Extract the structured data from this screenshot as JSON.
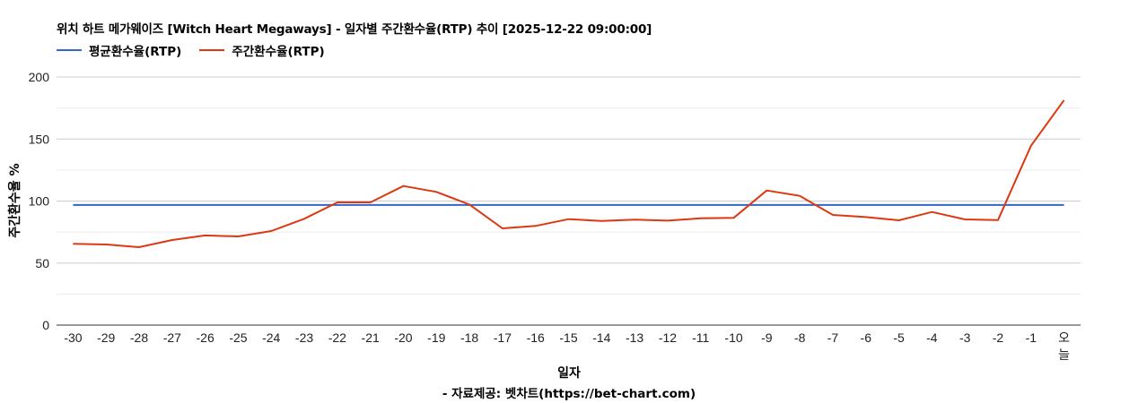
{
  "title": "위치 하트 메가웨이즈 [Witch Heart Megaways] - 일자별 주간환수율(RTP) 추이 [2025-12-22 09:00:00]",
  "legend": [
    {
      "label": "평균환수율(RTP)",
      "color": "#3366cc"
    },
    {
      "label": "주간환수율(RTP)",
      "color": "#dc3912"
    }
  ],
  "axes": {
    "x_title": "일자",
    "y_title": "주간환수율 %"
  },
  "source": "- 자료제공: 벳차트(https://bet-chart.com)",
  "chart_data": {
    "type": "line",
    "title": "위치 하트 메가웨이즈 [Witch Heart Megaways] - 일자별 주간환수율(RTP) 추이 [2025-12-22 09:00:00]",
    "xlabel": "일자",
    "ylabel": "주간환수율 %",
    "ylim": [
      0,
      200
    ],
    "yticks": [
      0,
      50,
      100,
      150,
      200
    ],
    "grid": true,
    "legend_position": "top",
    "categories": [
      "-30",
      "-29",
      "-28",
      "-27",
      "-26",
      "-25",
      "-24",
      "-23",
      "-22",
      "-21",
      "-20",
      "-19",
      "-18",
      "-17",
      "-16",
      "-15",
      "-14",
      "-13",
      "-12",
      "-11",
      "-10",
      "-9",
      "-8",
      "-7",
      "-6",
      "-5",
      "-4",
      "-3",
      "-2",
      "-1",
      "오늘"
    ],
    "series": [
      {
        "name": "평균환수율(RTP)",
        "color": "#3366cc",
        "values": [
          96.8,
          96.8,
          96.8,
          96.8,
          96.8,
          96.8,
          96.8,
          96.8,
          96.8,
          96.8,
          96.8,
          96.8,
          96.8,
          96.8,
          96.8,
          96.8,
          96.8,
          96.8,
          96.8,
          96.8,
          96.8,
          96.8,
          96.8,
          96.8,
          96.8,
          96.8,
          96.8,
          96.8,
          96.8,
          96.8,
          96.8
        ]
      },
      {
        "name": "주간환수율(RTP)",
        "color": "#dc3912",
        "values": [
          65.5,
          65.0,
          62.8,
          68.6,
          72.3,
          71.5,
          75.8,
          85.7,
          98.9,
          98.9,
          112.1,
          107.4,
          97.2,
          78.0,
          79.9,
          85.4,
          84.0,
          85.0,
          84.2,
          86.1,
          86.4,
          108.5,
          104.2,
          88.8,
          87.1,
          84.5,
          91.2,
          85.2,
          84.7,
          144.6,
          181.4
        ]
      }
    ]
  }
}
